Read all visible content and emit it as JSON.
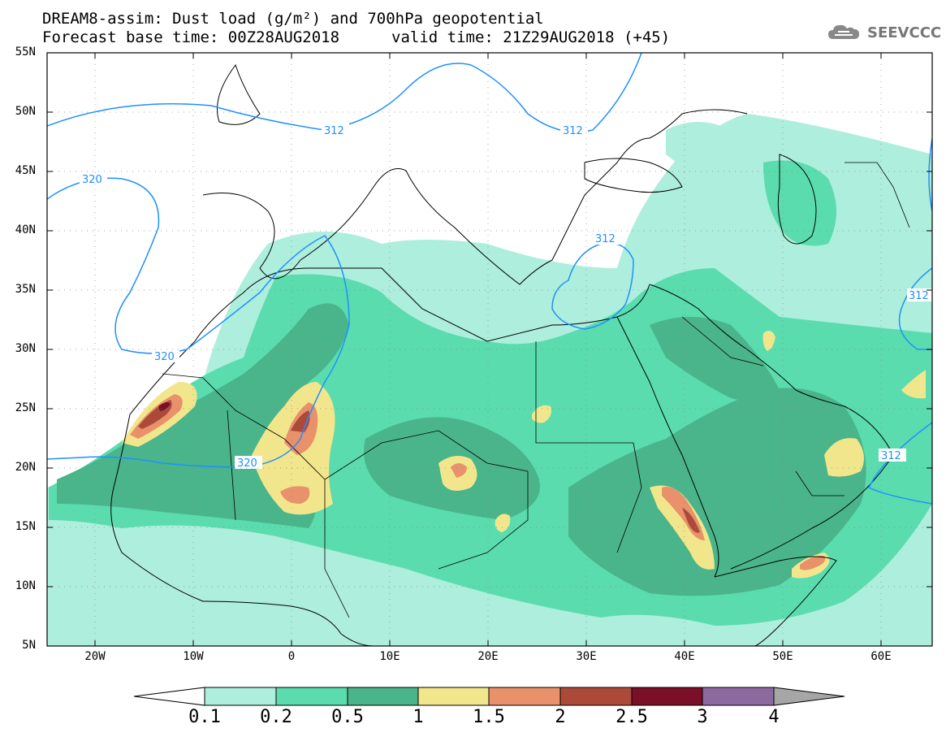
{
  "title_line1": "DREAM8-assim: Dust load (g/m²) and 700hPa geopotential",
  "title_line2_left": "Forecast base time: 00Z28AUG2018",
  "title_line2_right": "valid time: 21Z29AUG2018 (+45)",
  "logo_text": "SEEVCCC",
  "lat_labels": [
    "55N",
    "50N",
    "45N",
    "40N",
    "35N",
    "30N",
    "25N",
    "20N",
    "15N",
    "10N",
    "5N"
  ],
  "lon_labels": [
    "20W",
    "10W",
    "0",
    "10E",
    "20E",
    "30E",
    "40E",
    "50E",
    "60E"
  ],
  "contour_labels": [
    "312",
    "312",
    "312",
    "320",
    "320",
    "320",
    "312",
    "312"
  ],
  "colorbar": {
    "levels": [
      "0.1",
      "0.2",
      "0.5",
      "1",
      "1.5",
      "2",
      "2.5",
      "3",
      "4"
    ],
    "colors": [
      "#ffffff",
      "#aeeedc",
      "#5adcae",
      "#4ab48a",
      "#f2e68c",
      "#e8916a",
      "#ac4a3a",
      "#7a1028",
      "#8c6aa0",
      "#a6a6a6"
    ]
  },
  "colors": {
    "contour": "#1e90ff",
    "border": "#000000"
  }
}
